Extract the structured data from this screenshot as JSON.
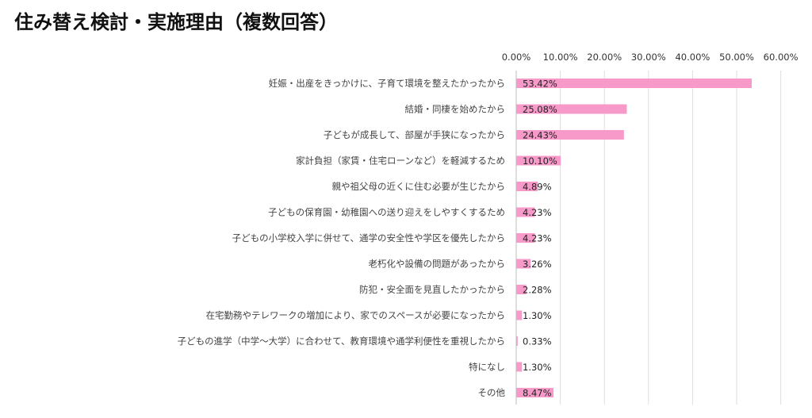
{
  "page": {
    "title": "住み替え検討・実施理由（複数回答）"
  },
  "chart_data": {
    "type": "bar",
    "orientation": "horizontal",
    "title": "住み替え検討・実施理由（複数回答）",
    "xlabel": "",
    "ylabel": "",
    "xlim": [
      0,
      60
    ],
    "tick_labels": [
      "0.00%",
      "10.00%",
      "20.00%",
      "30.00%",
      "40.00%",
      "50.00%",
      "60.00%"
    ],
    "grid": true,
    "legend": "none",
    "bar_color": "#f79ac9",
    "categories": [
      "妊娠・出産をきっかけに、子育て環境を整えたかったから",
      "結婚・同棲を始めたから",
      "子どもが成長して、部屋が手狭になったから",
      "家計負担（家賃・住宅ローンなど）を軽減するため",
      "親や祖父母の近くに住む必要が生じたから",
      "子どもの保育園・幼稚園への送り迎えをしやすくするため",
      "子どもの小学校入学に併せて、通学の安全性や学区を優先したから",
      "老朽化や設備の問題があったから",
      "防犯・安全面を見直したかったから",
      "在宅勤務やテレワークの増加により、家でのスペースが必要になったから",
      "子どもの進学（中学〜大学）に合わせて、教育環境や通学利便性を重視したから",
      "特になし",
      "その他"
    ],
    "values": [
      53.42,
      25.08,
      24.43,
      10.1,
      4.89,
      4.23,
      4.23,
      3.26,
      2.28,
      1.3,
      0.33,
      1.3,
      8.47
    ],
    "value_labels": [
      "53.42%",
      "25.08%",
      "24.43%",
      "10.10%",
      "4.89%",
      "4.23%",
      "4.23%",
      "3.26%",
      "2.28%",
      "1.30%",
      "0.33%",
      "1.30%",
      "8.47%"
    ]
  }
}
